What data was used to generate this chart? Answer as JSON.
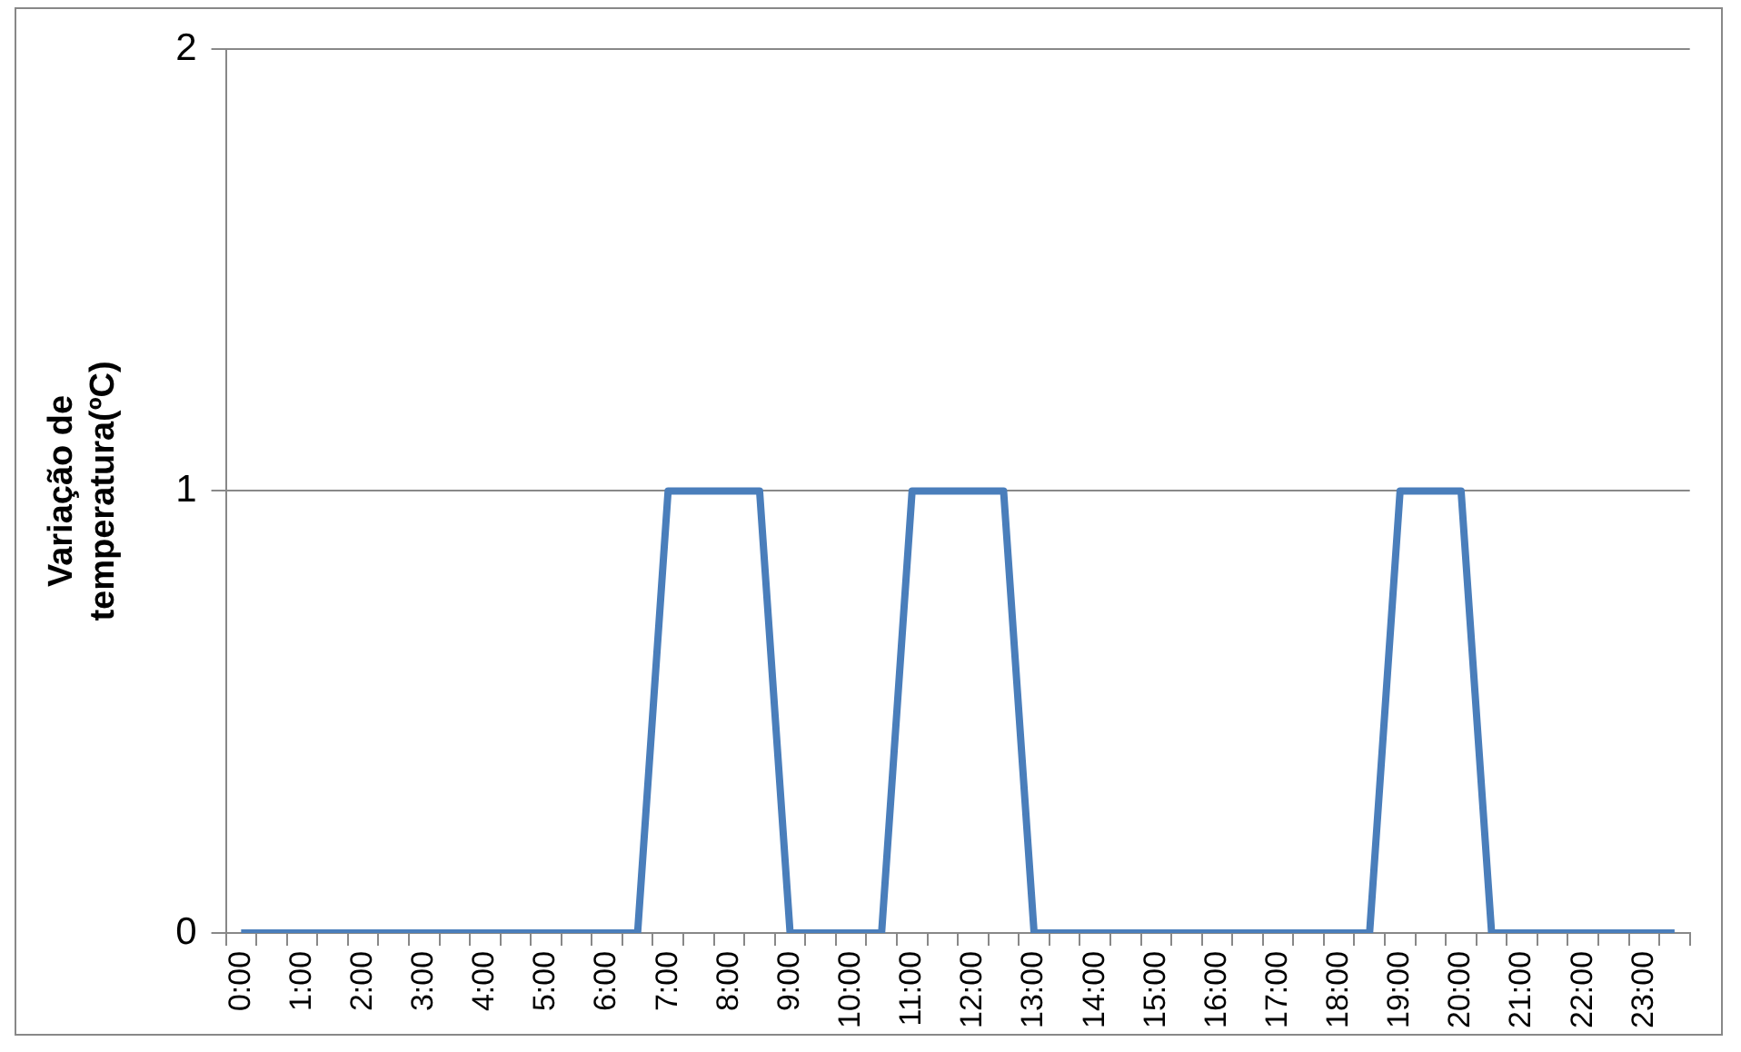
{
  "chart_data": {
    "type": "line",
    "ylabel": "Variação de temperatura(ºC)",
    "categories": [
      "0:00",
      null,
      "1:00",
      null,
      "2:00",
      null,
      "3:00",
      null,
      "4:00",
      null,
      "5:00",
      null,
      "6:00",
      null,
      "7:00",
      null,
      "8:00",
      null,
      "9:00",
      null,
      "10:00",
      null,
      "11:00",
      null,
      "12:00",
      null,
      "13:00",
      null,
      "14:00",
      null,
      "15:00",
      null,
      "16:00",
      null,
      "17:00",
      null,
      "18:00",
      null,
      "19:00",
      null,
      "20:00",
      null,
      "21:00",
      null,
      "22:00",
      null,
      "23:00",
      null
    ],
    "series": [
      {
        "color": "#4a7ebb",
        "values": [
          0,
          0,
          0,
          0,
          0,
          0,
          0,
          0,
          0,
          0,
          0,
          0,
          0,
          0,
          1,
          1,
          1,
          1,
          0,
          0,
          0,
          0,
          1,
          1,
          1,
          1,
          0,
          0,
          0,
          0,
          0,
          0,
          0,
          0,
          0,
          0,
          0,
          0,
          1,
          1,
          1,
          0,
          0,
          0,
          0,
          0,
          0,
          0
        ]
      }
    ],
    "ylim": [
      0,
      2
    ],
    "yticks": [
      0,
      1,
      2
    ],
    "grid": "y",
    "legend": false,
    "marker": "none",
    "line_style": "solid"
  }
}
